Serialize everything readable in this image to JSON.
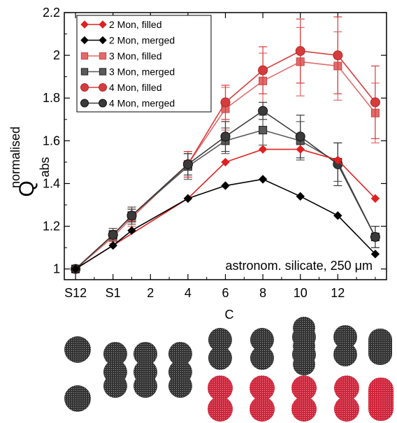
{
  "chart_data": {
    "type": "line",
    "title": "",
    "xlabel": "C",
    "ylabel": "Q",
    "ylabel_sub": "abs",
    "ylabel_sup": "normalised",
    "annotation": "astronom. silicate, 250 μm",
    "x_tick_labels": [
      "S12",
      "S1",
      "2",
      "4",
      "6",
      "8",
      "10",
      "12"
    ],
    "y_tick_labels": [
      "1",
      "1.2",
      "1.4",
      "1.6",
      "1.8",
      "2",
      "2.2"
    ],
    "xlim": [
      -3.6,
      13.6
    ],
    "ylim": [
      0.95,
      2.2
    ],
    "legend_position": "top-left",
    "series": [
      {
        "name": "2 Mon, filled",
        "color": "#e02020",
        "marker": "diamond",
        "x": [
          -3,
          3,
          5,
          7,
          9,
          11,
          13
        ],
        "y": [
          1.0,
          1.33,
          1.5,
          1.56,
          1.56,
          1.51,
          1.33
        ]
      },
      {
        "name": "2 Mon, merged",
        "color": "#000000",
        "marker": "diamond",
        "x": [
          -3,
          -1,
          0,
          3,
          5,
          7,
          9,
          11,
          13
        ],
        "y": [
          1.0,
          1.11,
          1.18,
          1.33,
          1.39,
          1.42,
          1.34,
          1.25,
          1.07
        ]
      },
      {
        "name": "3 Mon, filled",
        "color": "#e36a6a",
        "marker": "square",
        "x": [
          -3,
          -1,
          0,
          3,
          5,
          7,
          9,
          11,
          13
        ],
        "y": [
          1.0,
          1.15,
          1.24,
          1.49,
          1.75,
          1.88,
          1.97,
          1.95,
          1.73
        ],
        "err": [
          0,
          0.03,
          0.04,
          0.06,
          0.1,
          0.13,
          0.16,
          0.16,
          0.14
        ]
      },
      {
        "name": "3 Mon, merged",
        "color": "#5a5a5a",
        "marker": "square",
        "x": [
          -3,
          -1,
          0,
          3,
          5,
          7,
          9,
          11,
          13
        ],
        "y": [
          1.0,
          1.16,
          1.25,
          1.48,
          1.6,
          1.65,
          1.6,
          1.5,
          1.15
        ],
        "err": [
          0,
          0.03,
          0.04,
          0.06,
          0.06,
          0.07,
          0.09,
          0.09,
          0.05
        ]
      },
      {
        "name": "4 Mon, filled",
        "color": "#d63c3c",
        "marker": "circle",
        "x": [
          -3,
          -1,
          0,
          3,
          5,
          7,
          9,
          11,
          13
        ],
        "y": [
          1.0,
          1.16,
          1.25,
          1.49,
          1.78,
          1.93,
          2.02,
          2.0,
          1.78
        ],
        "err": [
          0,
          0.03,
          0.04,
          0.06,
          0.08,
          0.11,
          0.15,
          0.18,
          0.17
        ]
      },
      {
        "name": "4 Mon, merged",
        "color": "#3a3a3a",
        "marker": "circle",
        "x": [
          -3,
          -1,
          0,
          3,
          5,
          7,
          9,
          11,
          13
        ],
        "y": [
          1.0,
          1.16,
          1.25,
          1.49,
          1.62,
          1.74,
          1.62,
          1.49,
          1.15
        ],
        "err": [
          0,
          0.02,
          0.03,
          0.05,
          0.07,
          0.04,
          0.1,
          0.1,
          0.05
        ]
      }
    ],
    "aggregate_illustrations": {
      "top_row_color": "#333333",
      "bottom_row_left_color": "#333333",
      "bottom_row_right_color": "#d0243a",
      "top_row_shapes": [
        "1-mon",
        "2-mon",
        "2-mon",
        "2-mon",
        "3-mon",
        "3-mon",
        "3-mon",
        "3-mon",
        "3-mon"
      ],
      "bottom_row_shapes": [
        "1-mon",
        "2-mon",
        "2-mon",
        "2-mon",
        "3-mon",
        "3-mon",
        "3-mon",
        "3-mon",
        "3-mon"
      ]
    }
  }
}
